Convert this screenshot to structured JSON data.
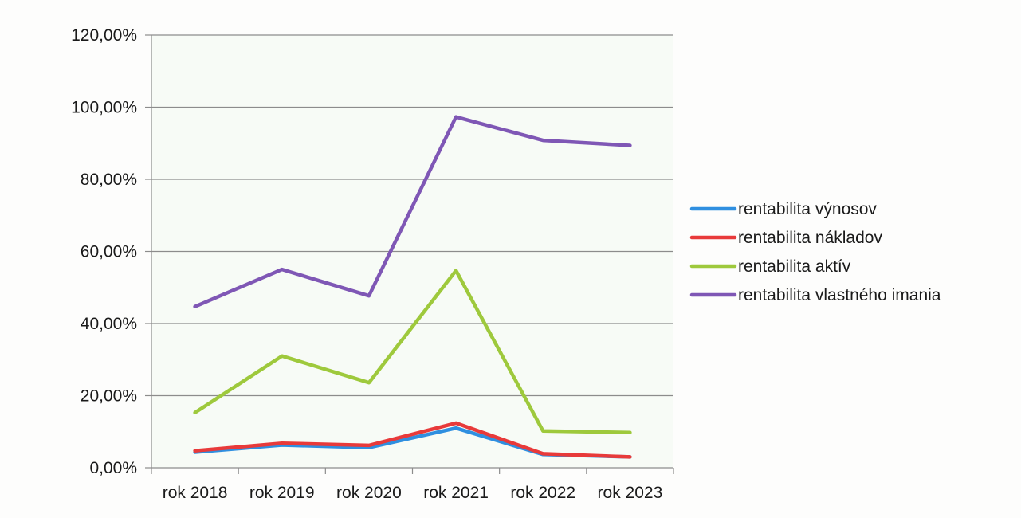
{
  "chart_data": {
    "type": "line",
    "categories": [
      "rok 2018",
      "rok 2019",
      "rok 2020",
      "rok 2021",
      "rok 2022",
      "rok 2023"
    ],
    "ylim": [
      0,
      1.2
    ],
    "yticks": [
      "0,00%",
      "20,00%",
      "40,00%",
      "60,00%",
      "80,00%",
      "100,00%",
      "120,00%"
    ],
    "grid": true,
    "legend_position": "right",
    "series": [
      {
        "name": "rentabilita výnosov",
        "color": "#2f8fe0",
        "values": [
          0.043,
          0.063,
          0.056,
          0.11,
          0.037,
          0.03
        ]
      },
      {
        "name": "rentabilita nákladov",
        "color": "#e83a3a",
        "values": [
          0.047,
          0.068,
          0.062,
          0.124,
          0.039,
          0.03
        ]
      },
      {
        "name": "rentabilita aktív",
        "color": "#9ec93c",
        "values": [
          0.153,
          0.31,
          0.236,
          0.547,
          0.102,
          0.098
        ]
      },
      {
        "name": "rentabilita vlastného imania",
        "color": "#7f57b5",
        "values": [
          0.447,
          0.55,
          0.477,
          0.973,
          0.908,
          0.894
        ]
      }
    ]
  }
}
